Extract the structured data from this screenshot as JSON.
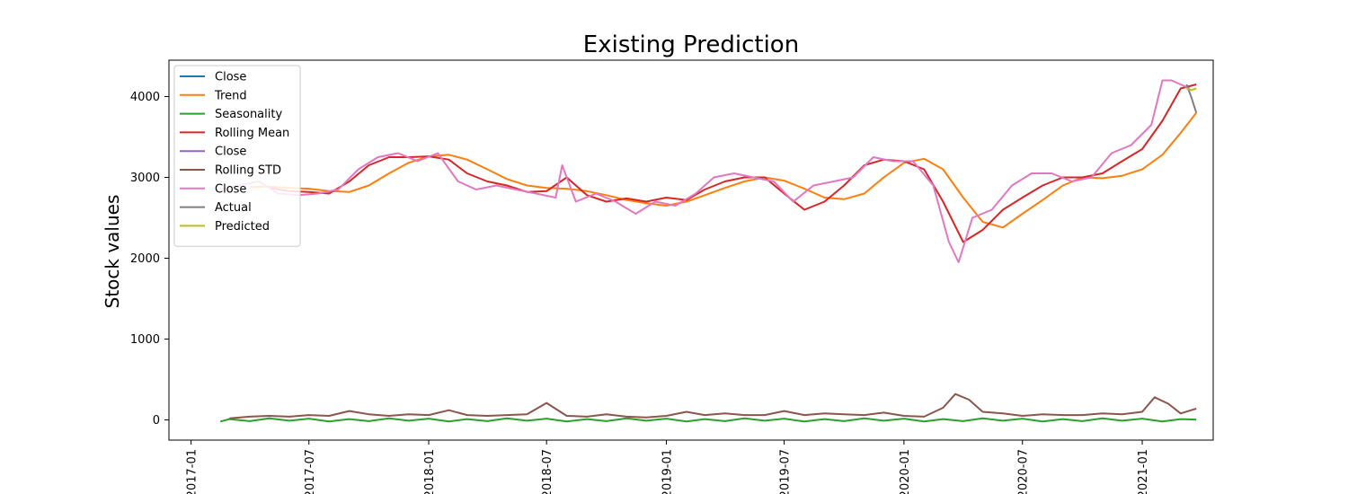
{
  "chart_data": {
    "type": "line",
    "title": "Existing Prediction",
    "xlabel": "",
    "ylabel": "Stock values",
    "x_type": "date",
    "xlim": [
      "2016-11-28",
      "2021-04-20"
    ],
    "ylim": [
      -250,
      4450
    ],
    "x_ticks": [
      "2017-01-01",
      "2017-07-01",
      "2018-01-01",
      "2018-07-01",
      "2019-01-01",
      "2019-07-01",
      "2020-01-01",
      "2020-07-01",
      "2021-01-01"
    ],
    "x_tick_labels": [
      "2017-01",
      "2017-07",
      "2018-01",
      "2018-07",
      "2019-01",
      "2019-07",
      "2020-01",
      "2020-07",
      "2021-01"
    ],
    "y_ticks": [
      0,
      1000,
      2000,
      3000,
      4000
    ],
    "y_tick_labels": [
      "0",
      "1000",
      "2000",
      "3000",
      "4000"
    ],
    "grid": false,
    "legend_position": "top-left",
    "legend": [
      "Close",
      "Trend",
      "Seasonality",
      "Rolling Mean",
      "Close",
      "Rolling STD",
      "Close",
      "Actual",
      "Predicted"
    ],
    "series": [
      {
        "name": "Close",
        "color": "#1f77b4",
        "x": [],
        "y": []
      },
      {
        "name": "Trend",
        "color": "#ff7f0e",
        "x": [
          "2017-04-01",
          "2017-05-01",
          "2017-06-01",
          "2017-07-01",
          "2017-08-01",
          "2017-09-01",
          "2017-10-01",
          "2017-11-01",
          "2017-12-01",
          "2018-01-01",
          "2018-02-01",
          "2018-03-01",
          "2018-04-01",
          "2018-05-01",
          "2018-06-01",
          "2018-07-01",
          "2018-08-01",
          "2018-09-01",
          "2018-10-01",
          "2018-11-01",
          "2018-12-01",
          "2019-01-01",
          "2019-02-01",
          "2019-03-01",
          "2019-04-01",
          "2019-05-01",
          "2019-06-01",
          "2019-07-01",
          "2019-08-01",
          "2019-09-01",
          "2019-10-01",
          "2019-11-01",
          "2019-12-01",
          "2020-01-01",
          "2020-02-01",
          "2020-03-01",
          "2020-04-01",
          "2020-05-01",
          "2020-06-01",
          "2020-07-01",
          "2020-08-01",
          "2020-09-01",
          "2020-10-01",
          "2020-11-01",
          "2020-12-01",
          "2021-01-01",
          "2021-02-01",
          "2021-03-01",
          "2021-03-25"
        ],
        "y": [
          2880,
          2885,
          2870,
          2860,
          2830,
          2820,
          2900,
          3050,
          3180,
          3260,
          3280,
          3220,
          3100,
          2980,
          2900,
          2870,
          2860,
          2830,
          2780,
          2720,
          2680,
          2650,
          2700,
          2780,
          2870,
          2950,
          3000,
          2960,
          2860,
          2750,
          2730,
          2800,
          3000,
          3180,
          3230,
          3100,
          2750,
          2450,
          2380,
          2550,
          2720,
          2900,
          3000,
          2990,
          3020,
          3100,
          3280,
          3550,
          3800
        ]
      },
      {
        "name": "Seasonality",
        "color": "#2ca02c",
        "x": [
          "2017-02-15",
          "2017-03-01",
          "2017-04-01",
          "2017-05-01",
          "2017-06-01",
          "2017-07-01",
          "2017-08-01",
          "2017-09-01",
          "2017-10-01",
          "2017-11-01",
          "2017-12-01",
          "2018-01-01",
          "2018-02-01",
          "2018-03-01",
          "2018-04-01",
          "2018-05-01",
          "2018-06-01",
          "2018-07-01",
          "2018-08-01",
          "2018-09-01",
          "2018-10-01",
          "2018-11-01",
          "2018-12-01",
          "2019-01-01",
          "2019-02-01",
          "2019-03-01",
          "2019-04-01",
          "2019-05-01",
          "2019-06-01",
          "2019-07-01",
          "2019-08-01",
          "2019-09-01",
          "2019-10-01",
          "2019-11-01",
          "2019-12-01",
          "2020-01-01",
          "2020-02-01",
          "2020-03-01",
          "2020-04-01",
          "2020-05-01",
          "2020-06-01",
          "2020-07-01",
          "2020-08-01",
          "2020-09-01",
          "2020-10-01",
          "2020-11-01",
          "2020-12-01",
          "2021-01-01",
          "2021-02-01",
          "2021-03-01",
          "2021-03-25"
        ],
        "y": [
          -20,
          10,
          -15,
          20,
          -10,
          15,
          -20,
          10,
          -15,
          20,
          -10,
          15,
          -20,
          10,
          -15,
          20,
          -10,
          15,
          -20,
          10,
          -15,
          20,
          -10,
          15,
          -20,
          10,
          -15,
          20,
          -10,
          15,
          -20,
          10,
          -15,
          20,
          -10,
          15,
          -20,
          10,
          -15,
          20,
          -10,
          15,
          -20,
          10,
          -15,
          20,
          -10,
          15,
          -20,
          10,
          5
        ]
      },
      {
        "name": "Rolling Mean",
        "color": "#d62728",
        "x": [
          "2017-05-01",
          "2017-06-01",
          "2017-07-01",
          "2017-08-01",
          "2017-09-01",
          "2017-10-01",
          "2017-11-01",
          "2017-12-01",
          "2018-01-01",
          "2018-02-01",
          "2018-03-01",
          "2018-04-01",
          "2018-05-01",
          "2018-06-01",
          "2018-07-01",
          "2018-08-01",
          "2018-09-01",
          "2018-10-01",
          "2018-11-01",
          "2018-12-01",
          "2019-01-01",
          "2019-02-01",
          "2019-03-01",
          "2019-04-01",
          "2019-05-01",
          "2019-06-01",
          "2019-07-01",
          "2019-08-01",
          "2019-09-01",
          "2019-10-01",
          "2019-11-01",
          "2019-12-01",
          "2020-01-01",
          "2020-02-01",
          "2020-03-01",
          "2020-04-01",
          "2020-05-01",
          "2020-06-01",
          "2020-07-01",
          "2020-08-01",
          "2020-09-01",
          "2020-10-01",
          "2020-11-01",
          "2020-12-01",
          "2021-01-01",
          "2021-02-01",
          "2021-03-01",
          "2021-03-25"
        ],
        "y": [
          2870,
          2830,
          2820,
          2800,
          2950,
          3150,
          3250,
          3250,
          3260,
          3220,
          3050,
          2950,
          2900,
          2820,
          2830,
          3000,
          2780,
          2700,
          2740,
          2700,
          2750,
          2720,
          2850,
          2950,
          3000,
          3000,
          2800,
          2600,
          2700,
          2900,
          3150,
          3220,
          3200,
          3100,
          2700,
          2200,
          2350,
          2600,
          2750,
          2900,
          3000,
          3000,
          3050,
          3200,
          3350,
          3700,
          4100,
          4150
        ]
      },
      {
        "name": "Close",
        "color": "#9467bd",
        "x": [],
        "y": []
      },
      {
        "name": "Rolling STD",
        "color": "#8c564b",
        "x": [
          "2017-03-01",
          "2017-04-01",
          "2017-05-01",
          "2017-06-01",
          "2017-07-01",
          "2017-08-01",
          "2017-09-01",
          "2017-10-01",
          "2017-11-01",
          "2017-12-01",
          "2018-01-01",
          "2018-02-01",
          "2018-03-01",
          "2018-04-01",
          "2018-05-01",
          "2018-06-01",
          "2018-07-01",
          "2018-08-01",
          "2018-09-01",
          "2018-10-01",
          "2018-11-01",
          "2018-12-01",
          "2019-01-01",
          "2019-02-01",
          "2019-03-01",
          "2019-04-01",
          "2019-05-01",
          "2019-06-01",
          "2019-07-01",
          "2019-08-01",
          "2019-09-01",
          "2019-10-01",
          "2019-11-01",
          "2019-12-01",
          "2020-01-01",
          "2020-02-01",
          "2020-03-01",
          "2020-03-20",
          "2020-04-10",
          "2020-05-01",
          "2020-06-01",
          "2020-07-01",
          "2020-08-01",
          "2020-09-01",
          "2020-10-01",
          "2020-11-01",
          "2020-12-01",
          "2021-01-01",
          "2021-01-20",
          "2021-02-10",
          "2021-03-01",
          "2021-03-25"
        ],
        "y": [
          20,
          40,
          50,
          40,
          60,
          50,
          110,
          70,
          50,
          70,
          60,
          120,
          60,
          50,
          60,
          70,
          210,
          50,
          40,
          70,
          40,
          30,
          50,
          100,
          60,
          80,
          60,
          60,
          110,
          60,
          80,
          70,
          60,
          90,
          50,
          40,
          150,
          320,
          250,
          100,
          80,
          50,
          70,
          60,
          60,
          80,
          70,
          100,
          280,
          200,
          80,
          140
        ]
      },
      {
        "name": "Close",
        "color": "#e377c2",
        "x": [
          "2017-02-15",
          "2017-03-15",
          "2017-04-15",
          "2017-05-15",
          "2017-06-15",
          "2017-07-15",
          "2017-08-15",
          "2017-09-15",
          "2017-10-15",
          "2017-11-15",
          "2017-12-15",
          "2018-01-15",
          "2018-02-15",
          "2018-03-15",
          "2018-04-15",
          "2018-05-15",
          "2018-06-15",
          "2018-07-15",
          "2018-07-25",
          "2018-08-15",
          "2018-09-15",
          "2018-10-15",
          "2018-11-15",
          "2018-12-15",
          "2019-01-15",
          "2019-02-15",
          "2019-03-15",
          "2019-04-15",
          "2019-05-15",
          "2019-06-15",
          "2019-07-15",
          "2019-08-15",
          "2019-09-15",
          "2019-10-15",
          "2019-11-15",
          "2019-12-15",
          "2020-01-15",
          "2020-02-15",
          "2020-03-10",
          "2020-03-25",
          "2020-04-15",
          "2020-05-15",
          "2020-06-15",
          "2020-07-15",
          "2020-08-15",
          "2020-09-15",
          "2020-10-15",
          "2020-11-15",
          "2020-12-15",
          "2021-01-15",
          "2021-02-01",
          "2021-02-15",
          "2021-03-01",
          "2021-03-15"
        ],
        "y": [
          2850,
          2900,
          2950,
          2800,
          2780,
          2800,
          2850,
          3100,
          3250,
          3300,
          3200,
          3300,
          2950,
          2850,
          2900,
          2850,
          2800,
          2750,
          3150,
          2700,
          2800,
          2700,
          2550,
          2700,
          2650,
          2800,
          3000,
          3050,
          3000,
          2950,
          2700,
          2900,
          2950,
          3000,
          3250,
          3200,
          3200,
          2900,
          2200,
          1950,
          2500,
          2600,
          2900,
          3050,
          3050,
          2950,
          3000,
          3300,
          3400,
          3650,
          4200,
          4200,
          4150,
          4100
        ]
      },
      {
        "name": "Actual",
        "color": "#7f7f7f",
        "x": [
          "2021-03-10",
          "2021-03-17",
          "2021-03-25"
        ],
        "y": [
          4150,
          4000,
          3800
        ]
      },
      {
        "name": "Predicted",
        "color": "#bcbd22",
        "x": [
          "2021-03-10",
          "2021-03-17",
          "2021-03-25"
        ],
        "y": [
          4100,
          4080,
          4100
        ]
      }
    ]
  }
}
